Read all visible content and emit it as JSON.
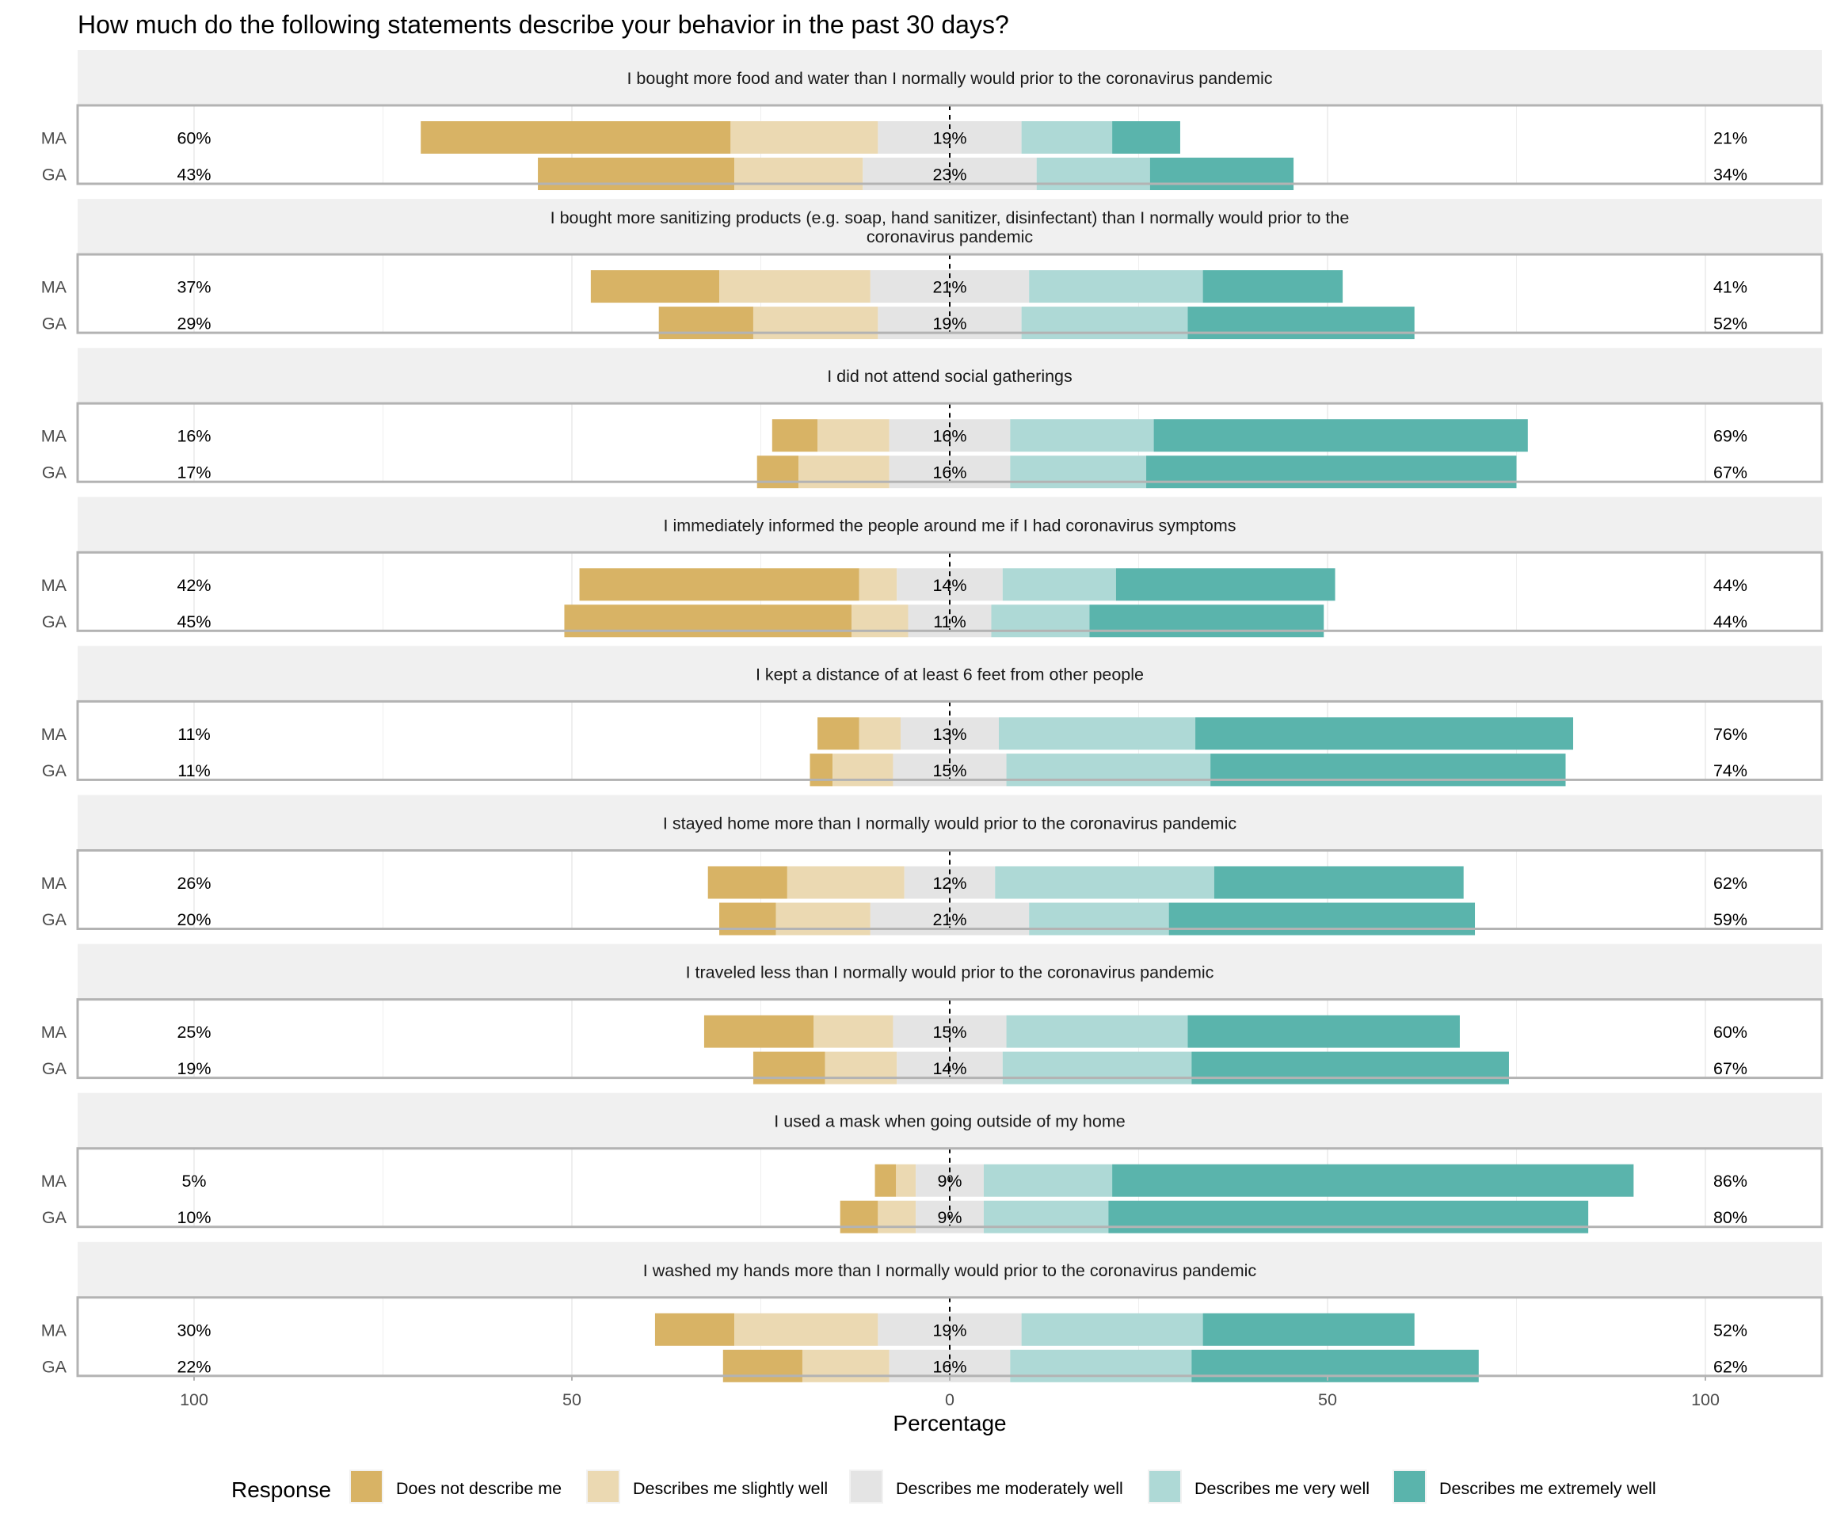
{
  "chart_data": {
    "type": "bar",
    "subtype": "diverging-stacked-horizontal",
    "title": "How much do the following statements describe your behavior in the past 30 days?",
    "xlabel": "Percentage",
    "ylabel": "",
    "xlim": [
      -115,
      115
    ],
    "x_ticks": [
      -100,
      -50,
      0,
      50,
      100
    ],
    "x_tick_labels": [
      "100",
      "50",
      "0",
      "50",
      "100"
    ],
    "grid": true,
    "legend": {
      "title": "Response",
      "position": "bottom",
      "entries": [
        {
          "key": "dn",
          "label": "Does not describe me",
          "color": "#D8B365"
        },
        {
          "key": "sl",
          "label": "Describes me slightly well",
          "color": "#EBD9B2"
        },
        {
          "key": "mod",
          "label": "Describes me moderately well",
          "color": "#E4E4E4"
        },
        {
          "key": "vw",
          "label": "Describes me very well",
          "color": "#AED9D6"
        },
        {
          "key": "ew",
          "label": "Describes me extremely well",
          "color": "#5AB4AC"
        }
      ]
    },
    "groups": [
      "MA",
      "GA"
    ],
    "panels": [
      {
        "statement": "I bought more food and water than I normally would prior to the coronavirus pandemic",
        "statement_lines": [
          "I bought more food and water than I normally would prior to the coronavirus pandemic"
        ],
        "rows": [
          {
            "group": "MA",
            "dn": 41,
            "sl": 19.5,
            "mod": 19,
            "vw": 12,
            "ew": 9,
            "low_label": "60%",
            "mid_label": "19%",
            "high_label": "21%"
          },
          {
            "group": "GA",
            "dn": 26,
            "sl": 17,
            "mod": 23,
            "vw": 15,
            "ew": 19,
            "low_label": "43%",
            "mid_label": "23%",
            "high_label": "34%"
          }
        ]
      },
      {
        "statement": "I bought more sanitizing products (e.g. soap, hand sanitizer, disinfectant) than I normally would prior to the coronavirus pandemic",
        "statement_lines": [
          "I bought more sanitizing products (e.g. soap, hand sanitizer, disinfectant) than I normally would prior to the",
          "coronavirus pandemic"
        ],
        "rows": [
          {
            "group": "MA",
            "dn": 17,
            "sl": 20,
            "mod": 21,
            "vw": 23,
            "ew": 18.5,
            "low_label": "37%",
            "mid_label": "21%",
            "high_label": "41%"
          },
          {
            "group": "GA",
            "dn": 12.5,
            "sl": 16.5,
            "mod": 19,
            "vw": 22,
            "ew": 30,
            "low_label": "29%",
            "mid_label": "19%",
            "high_label": "52%"
          }
        ]
      },
      {
        "statement": "I did not attend social gatherings",
        "statement_lines": [
          "I did not attend social gatherings"
        ],
        "rows": [
          {
            "group": "MA",
            "dn": 6,
            "sl": 9.5,
            "mod": 16,
            "vw": 19,
            "ew": 49.5,
            "low_label": "16%",
            "mid_label": "16%",
            "high_label": "69%"
          },
          {
            "group": "GA",
            "dn": 5.5,
            "sl": 12,
            "mod": 16,
            "vw": 18,
            "ew": 49,
            "low_label": "17%",
            "mid_label": "16%",
            "high_label": "67%"
          }
        ]
      },
      {
        "statement": "I immediately informed the people around me if I had coronavirus symptoms",
        "statement_lines": [
          "I immediately informed the people around me if I had coronavirus symptoms"
        ],
        "rows": [
          {
            "group": "MA",
            "dn": 37,
            "sl": 5,
            "mod": 14,
            "vw": 15,
            "ew": 29,
            "low_label": "42%",
            "mid_label": "14%",
            "high_label": "44%"
          },
          {
            "group": "GA",
            "dn": 38,
            "sl": 7.5,
            "mod": 11,
            "vw": 13,
            "ew": 31,
            "low_label": "45%",
            "mid_label": "11%",
            "high_label": "44%"
          }
        ]
      },
      {
        "statement": "I kept a distance of at least 6 feet from other people",
        "statement_lines": [
          "I kept a distance of at least 6 feet from other people"
        ],
        "rows": [
          {
            "group": "MA",
            "dn": 5.5,
            "sl": 5.5,
            "mod": 13,
            "vw": 26,
            "ew": 50,
            "low_label": "11%",
            "mid_label": "13%",
            "high_label": "76%"
          },
          {
            "group": "GA",
            "dn": 3,
            "sl": 8,
            "mod": 15,
            "vw": 27,
            "ew": 47,
            "low_label": "11%",
            "mid_label": "15%",
            "high_label": "74%"
          }
        ]
      },
      {
        "statement": "I stayed home more than I normally would prior to the coronavirus pandemic",
        "statement_lines": [
          "I stayed home more than I normally would prior to the coronavirus pandemic"
        ],
        "rows": [
          {
            "group": "MA",
            "dn": 10.5,
            "sl": 15.5,
            "mod": 12,
            "vw": 29,
            "ew": 33,
            "low_label": "26%",
            "mid_label": "12%",
            "high_label": "62%"
          },
          {
            "group": "GA",
            "dn": 7.5,
            "sl": 12.5,
            "mod": 21,
            "vw": 18.5,
            "ew": 40.5,
            "low_label": "20%",
            "mid_label": "21%",
            "high_label": "59%"
          }
        ]
      },
      {
        "statement": "I traveled less than I normally would prior to the coronavirus pandemic",
        "statement_lines": [
          "I traveled less than I normally would prior to the coronavirus pandemic"
        ],
        "rows": [
          {
            "group": "MA",
            "dn": 14.5,
            "sl": 10.5,
            "mod": 15,
            "vw": 24,
            "ew": 36,
            "low_label": "25%",
            "mid_label": "15%",
            "high_label": "60%"
          },
          {
            "group": "GA",
            "dn": 9.5,
            "sl": 9.5,
            "mod": 14,
            "vw": 25,
            "ew": 42,
            "low_label": "19%",
            "mid_label": "14%",
            "high_label": "67%"
          }
        ]
      },
      {
        "statement": "I used a mask when going outside of my home",
        "statement_lines": [
          "I used a mask when going outside of my home"
        ],
        "rows": [
          {
            "group": "MA",
            "dn": 2.8,
            "sl": 2.6,
            "mod": 9,
            "vw": 17,
            "ew": 69,
            "low_label": "5%",
            "mid_label": "9%",
            "high_label": "86%"
          },
          {
            "group": "GA",
            "dn": 5,
            "sl": 5,
            "mod": 9,
            "vw": 16.5,
            "ew": 63.5,
            "low_label": "10%",
            "mid_label": "9%",
            "high_label": "80%"
          }
        ]
      },
      {
        "statement": "I washed my hands more than I normally would prior to the coronavirus pandemic",
        "statement_lines": [
          "I washed my hands more than I normally would prior to the coronavirus pandemic"
        ],
        "rows": [
          {
            "group": "MA",
            "dn": 10.5,
            "sl": 19,
            "mod": 19,
            "vw": 24,
            "ew": 28,
            "low_label": "30%",
            "mid_label": "19%",
            "high_label": "52%"
          },
          {
            "group": "GA",
            "dn": 10.5,
            "sl": 11.5,
            "mod": 16,
            "vw": 24,
            "ew": 38,
            "low_label": "22%",
            "mid_label": "16%",
            "high_label": "62%"
          }
        ]
      }
    ]
  }
}
